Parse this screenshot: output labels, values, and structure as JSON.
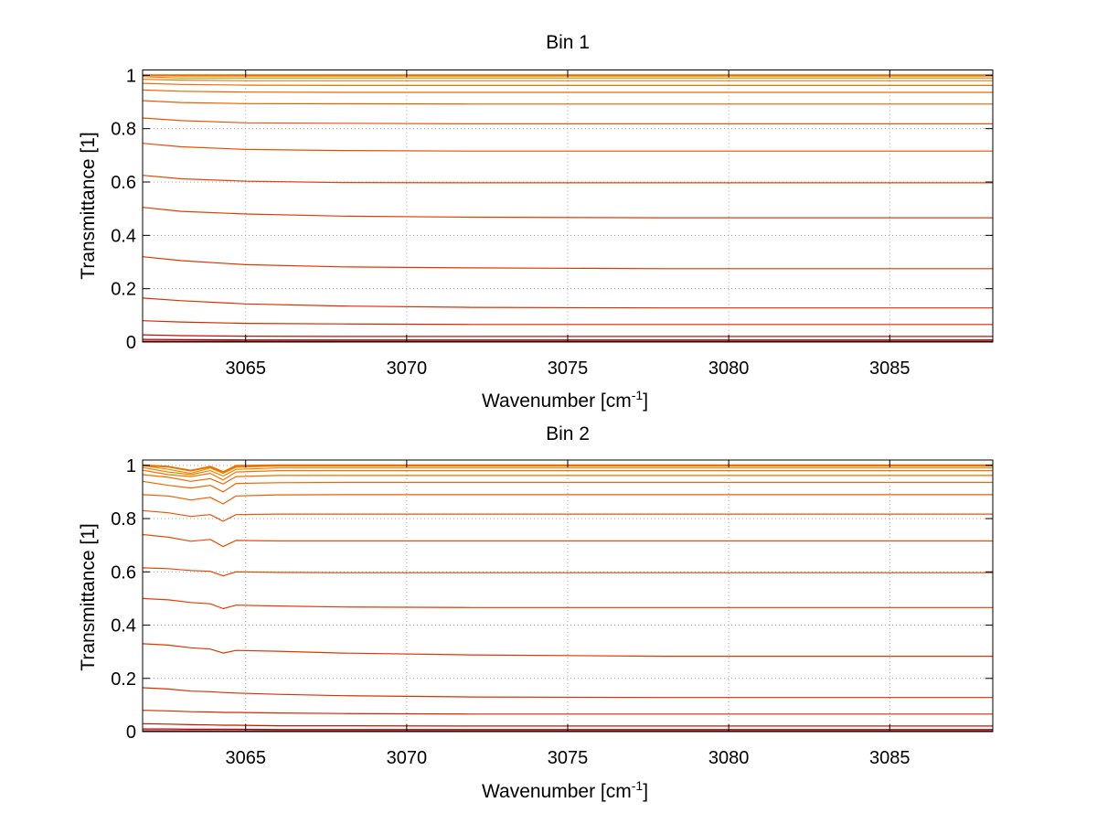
{
  "chart_data": [
    {
      "type": "line",
      "title": "Bin 1",
      "xlabel": {
        "base": "Wavenumber [cm",
        "sup": "-1",
        "close": "]"
      },
      "ylabel": "Transmittance [1]",
      "xlim": [
        3061.8,
        3088.2
      ],
      "ylim": [
        0,
        1.02
      ],
      "xticks": [
        3065,
        3070,
        3075,
        3080,
        3085
      ],
      "yticks": [
        0,
        0.2,
        0.4,
        0.6,
        0.8,
        1
      ],
      "ytick_labels": [
        "0",
        "0.2",
        "0.4",
        "0.6",
        "0.8",
        "1"
      ],
      "grid": true,
      "x_knots": [
        3061.8,
        3063,
        3065,
        3068,
        3072,
        3078,
        3084,
        3088.2
      ],
      "series": [
        {
          "color": "#8b0000",
          "values": [
            0.003,
            0.003,
            0.003,
            0.003,
            0.003,
            0.003,
            0.003,
            0.003
          ]
        },
        {
          "color": "#a50000",
          "values": [
            0.01,
            0.009,
            0.008,
            0.008,
            0.008,
            0.008,
            0.008,
            0.008
          ]
        },
        {
          "color": "#c01500",
          "values": [
            0.027,
            0.024,
            0.022,
            0.021,
            0.021,
            0.021,
            0.021,
            0.021
          ]
        },
        {
          "color": "#d42a00",
          "values": [
            0.08,
            0.075,
            0.07,
            0.068,
            0.066,
            0.066,
            0.066,
            0.066
          ]
        },
        {
          "color": "#dc3000",
          "values": [
            0.165,
            0.155,
            0.143,
            0.135,
            0.13,
            0.128,
            0.128,
            0.128
          ]
        },
        {
          "color": "#e03600",
          "values": [
            0.32,
            0.305,
            0.29,
            0.282,
            0.278,
            0.275,
            0.275,
            0.275
          ]
        },
        {
          "color": "#e43c00",
          "values": [
            0.505,
            0.49,
            0.48,
            0.472,
            0.468,
            0.466,
            0.466,
            0.466
          ]
        },
        {
          "color": "#e84400",
          "values": [
            0.625,
            0.612,
            0.603,
            0.598,
            0.597,
            0.597,
            0.597,
            0.597
          ]
        },
        {
          "color": "#ea4c00",
          "values": [
            0.745,
            0.732,
            0.722,
            0.718,
            0.716,
            0.716,
            0.716,
            0.716
          ]
        },
        {
          "color": "#ec5400",
          "values": [
            0.84,
            0.83,
            0.822,
            0.82,
            0.818,
            0.818,
            0.818,
            0.818
          ]
        },
        {
          "color": "#ee5c00",
          "values": [
            0.905,
            0.898,
            0.894,
            0.893,
            0.892,
            0.892,
            0.892,
            0.892
          ]
        },
        {
          "color": "#f06400",
          "values": [
            0.945,
            0.94,
            0.937,
            0.936,
            0.936,
            0.936,
            0.936,
            0.936
          ]
        },
        {
          "color": "#f26c00",
          "values": [
            0.97,
            0.966,
            0.963,
            0.962,
            0.962,
            0.962,
            0.962,
            0.962
          ]
        },
        {
          "color": "#f47600",
          "values": [
            0.985,
            0.982,
            0.98,
            0.98,
            0.98,
            0.98,
            0.98,
            0.98
          ]
        },
        {
          "color": "#f68000",
          "values": [
            0.995,
            0.99,
            0.99,
            0.99,
            0.99,
            0.99,
            0.99,
            0.99
          ]
        },
        {
          "color": "#f88a00",
          "values": [
            1.0,
            0.997,
            0.997,
            0.997,
            0.997,
            0.997,
            0.997,
            0.997
          ]
        },
        {
          "color": "#e87000",
          "values": [
            1.0,
            1.0,
            1.0,
            1.0,
            1.0,
            1.0,
            1.0,
            1.0
          ]
        }
      ]
    },
    {
      "type": "line",
      "title": "Bin 2",
      "xlabel": {
        "base": "Wavenumber [cm",
        "sup": "-1",
        "close": "]"
      },
      "ylabel": "Transmittance [1]",
      "xlim": [
        3061.8,
        3088.2
      ],
      "ylim": [
        0,
        1.02
      ],
      "xticks": [
        3065,
        3070,
        3075,
        3080,
        3085
      ],
      "yticks": [
        0,
        0.2,
        0.4,
        0.6,
        0.8,
        1
      ],
      "ytick_labels": [
        "0",
        "0.2",
        "0.4",
        "0.6",
        "0.8",
        "1"
      ],
      "grid": true,
      "x_knots": [
        3061.8,
        3062.6,
        3063.3,
        3063.9,
        3064.3,
        3064.7,
        3066,
        3068,
        3072,
        3078,
        3084,
        3088.2
      ],
      "series": [
        {
          "color": "#8b0000",
          "values": [
            0.003,
            0.003,
            0.003,
            0.003,
            0.003,
            0.003,
            0.003,
            0.003,
            0.003,
            0.003,
            0.003,
            0.003
          ]
        },
        {
          "color": "#a50000",
          "values": [
            0.01,
            0.01,
            0.009,
            0.009,
            0.009,
            0.009,
            0.008,
            0.008,
            0.008,
            0.008,
            0.008,
            0.008
          ]
        },
        {
          "color": "#c01500",
          "values": [
            0.03,
            0.028,
            0.026,
            0.025,
            0.024,
            0.024,
            0.022,
            0.022,
            0.021,
            0.021,
            0.021,
            0.021
          ]
        },
        {
          "color": "#d42a00",
          "values": [
            0.08,
            0.078,
            0.075,
            0.074,
            0.072,
            0.072,
            0.07,
            0.068,
            0.066,
            0.066,
            0.066,
            0.066
          ]
        },
        {
          "color": "#dc3000",
          "values": [
            0.165,
            0.16,
            0.152,
            0.15,
            0.147,
            0.145,
            0.14,
            0.135,
            0.13,
            0.128,
            0.128,
            0.128
          ]
        },
        {
          "color": "#e03600",
          "values": [
            0.33,
            0.325,
            0.315,
            0.31,
            0.295,
            0.305,
            0.302,
            0.295,
            0.288,
            0.283,
            0.283,
            0.283
          ]
        },
        {
          "color": "#e43c00",
          "values": [
            0.5,
            0.495,
            0.485,
            0.48,
            0.462,
            0.475,
            0.472,
            0.468,
            0.466,
            0.466,
            0.466,
            0.466
          ]
        },
        {
          "color": "#e84400",
          "values": [
            0.615,
            0.612,
            0.605,
            0.602,
            0.585,
            0.6,
            0.598,
            0.597,
            0.597,
            0.597,
            0.597,
            0.597
          ]
        },
        {
          "color": "#ea4c00",
          "values": [
            0.74,
            0.73,
            0.715,
            0.722,
            0.695,
            0.718,
            0.716,
            0.716,
            0.716,
            0.716,
            0.716,
            0.716
          ]
        },
        {
          "color": "#ec5400",
          "values": [
            0.83,
            0.822,
            0.808,
            0.815,
            0.79,
            0.815,
            0.817,
            0.817,
            0.817,
            0.817,
            0.817,
            0.817
          ]
        },
        {
          "color": "#ee5c00",
          "values": [
            0.89,
            0.885,
            0.87,
            0.88,
            0.855,
            0.885,
            0.889,
            0.89,
            0.89,
            0.89,
            0.89,
            0.89
          ]
        },
        {
          "color": "#f06400",
          "values": [
            0.94,
            0.925,
            0.915,
            0.925,
            0.9,
            0.932,
            0.935,
            0.936,
            0.936,
            0.936,
            0.936,
            0.936
          ]
        },
        {
          "color": "#f26c00",
          "values": [
            0.965,
            0.955,
            0.94,
            0.95,
            0.93,
            0.958,
            0.962,
            0.962,
            0.962,
            0.962,
            0.962,
            0.962
          ]
        },
        {
          "color": "#f47600",
          "values": [
            0.982,
            0.965,
            0.958,
            0.97,
            0.945,
            0.975,
            0.98,
            0.98,
            0.98,
            0.98,
            0.98,
            0.98
          ]
        },
        {
          "color": "#f68000",
          "values": [
            0.992,
            0.975,
            0.965,
            0.98,
            0.96,
            0.985,
            0.99,
            0.99,
            0.99,
            0.99,
            0.99,
            0.99
          ]
        },
        {
          "color": "#f88a00",
          "values": [
            0.999,
            0.985,
            0.97,
            0.99,
            0.97,
            0.993,
            0.997,
            0.997,
            0.997,
            0.997,
            0.997,
            0.997
          ]
        },
        {
          "color": "#e87000",
          "values": [
            1.0,
            0.995,
            0.98,
            0.995,
            0.975,
            0.998,
            1.0,
            1.0,
            1.0,
            1.0,
            1.0,
            1.0
          ]
        }
      ]
    }
  ]
}
